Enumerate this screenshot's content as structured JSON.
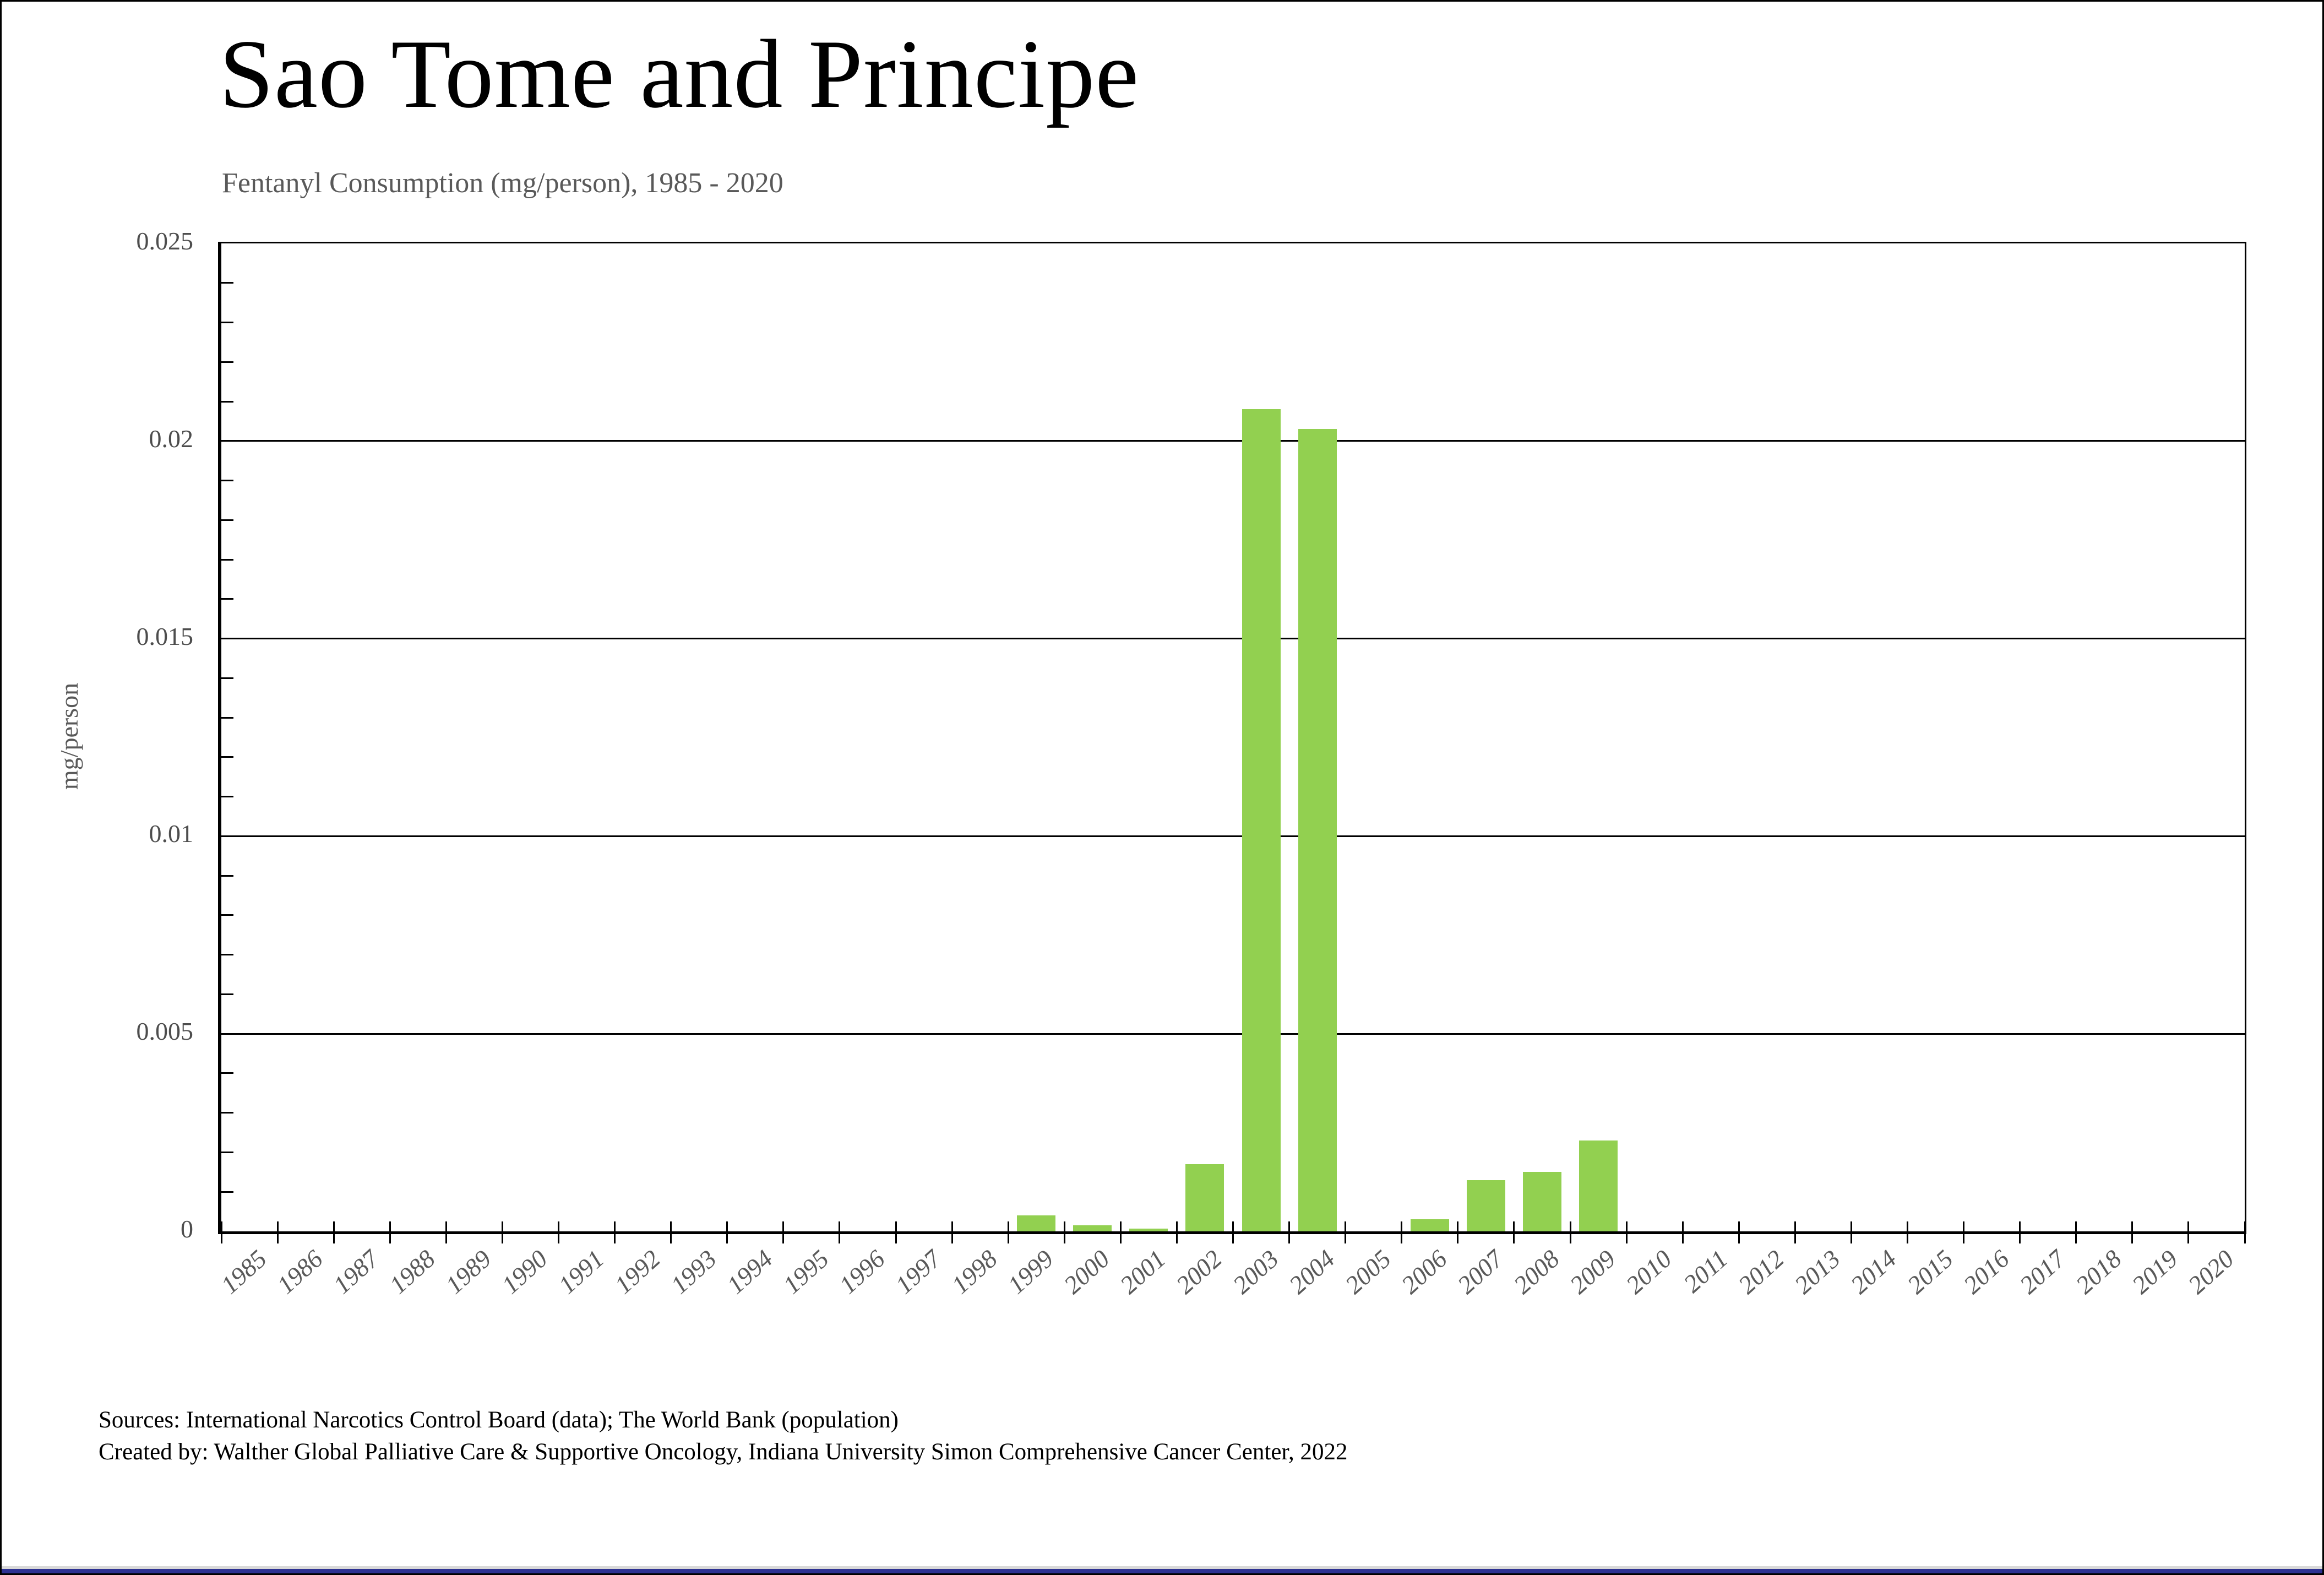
{
  "header": {
    "title": "Sao Tome and Principe",
    "subtitle": "Fentanyl Consumption (mg/person), 1985 - 2020"
  },
  "chart_data": {
    "type": "bar",
    "title": "Fentanyl Consumption (mg/person), 1985 - 2020",
    "xlabel": "",
    "ylabel": "mg/person",
    "ylim": [
      0,
      0.025
    ],
    "ytick_step": 0.005,
    "ytick_labels": [
      "0",
      "0.005",
      "0.01",
      "0.015",
      "0.02",
      "0.025"
    ],
    "y_minor_step": 0.001,
    "grid": "horizontal-major-on",
    "legend": "none",
    "bar_color": "#92d050",
    "categories": [
      "1985",
      "1986",
      "1987",
      "1988",
      "1989",
      "1990",
      "1991",
      "1992",
      "1993",
      "1994",
      "1995",
      "1996",
      "1997",
      "1998",
      "1999",
      "2000",
      "2001",
      "2002",
      "2003",
      "2004",
      "2005",
      "2006",
      "2007",
      "2008",
      "2009",
      "2010",
      "2011",
      "2012",
      "2013",
      "2014",
      "2015",
      "2016",
      "2017",
      "2018",
      "2019",
      "2020"
    ],
    "values": [
      0,
      0,
      0,
      0,
      0,
      0,
      0,
      0,
      0,
      0,
      0,
      0,
      0,
      0,
      0.0004,
      0.00015,
      7e-05,
      0.0017,
      0.0208,
      0.0203,
      0,
      0.0003,
      0.0013,
      0.0015,
      0.0023,
      0,
      0,
      0,
      0,
      0,
      0,
      0,
      0,
      0,
      0,
      0
    ]
  },
  "footer": {
    "sources": "Sources: International Narcotics Control Board (data); The World Bank (population)",
    "credit": "Created by: Walther Global Palliative Care & Supportive Oncology, Indiana University Simon Comprehensive Cancer Center, 2022"
  },
  "colors": {
    "bar": "#92d050",
    "accent_bar": "#2e3192",
    "gray_line": "#d9d9d9",
    "muted_text": "#595959",
    "axis": "#000000"
  }
}
